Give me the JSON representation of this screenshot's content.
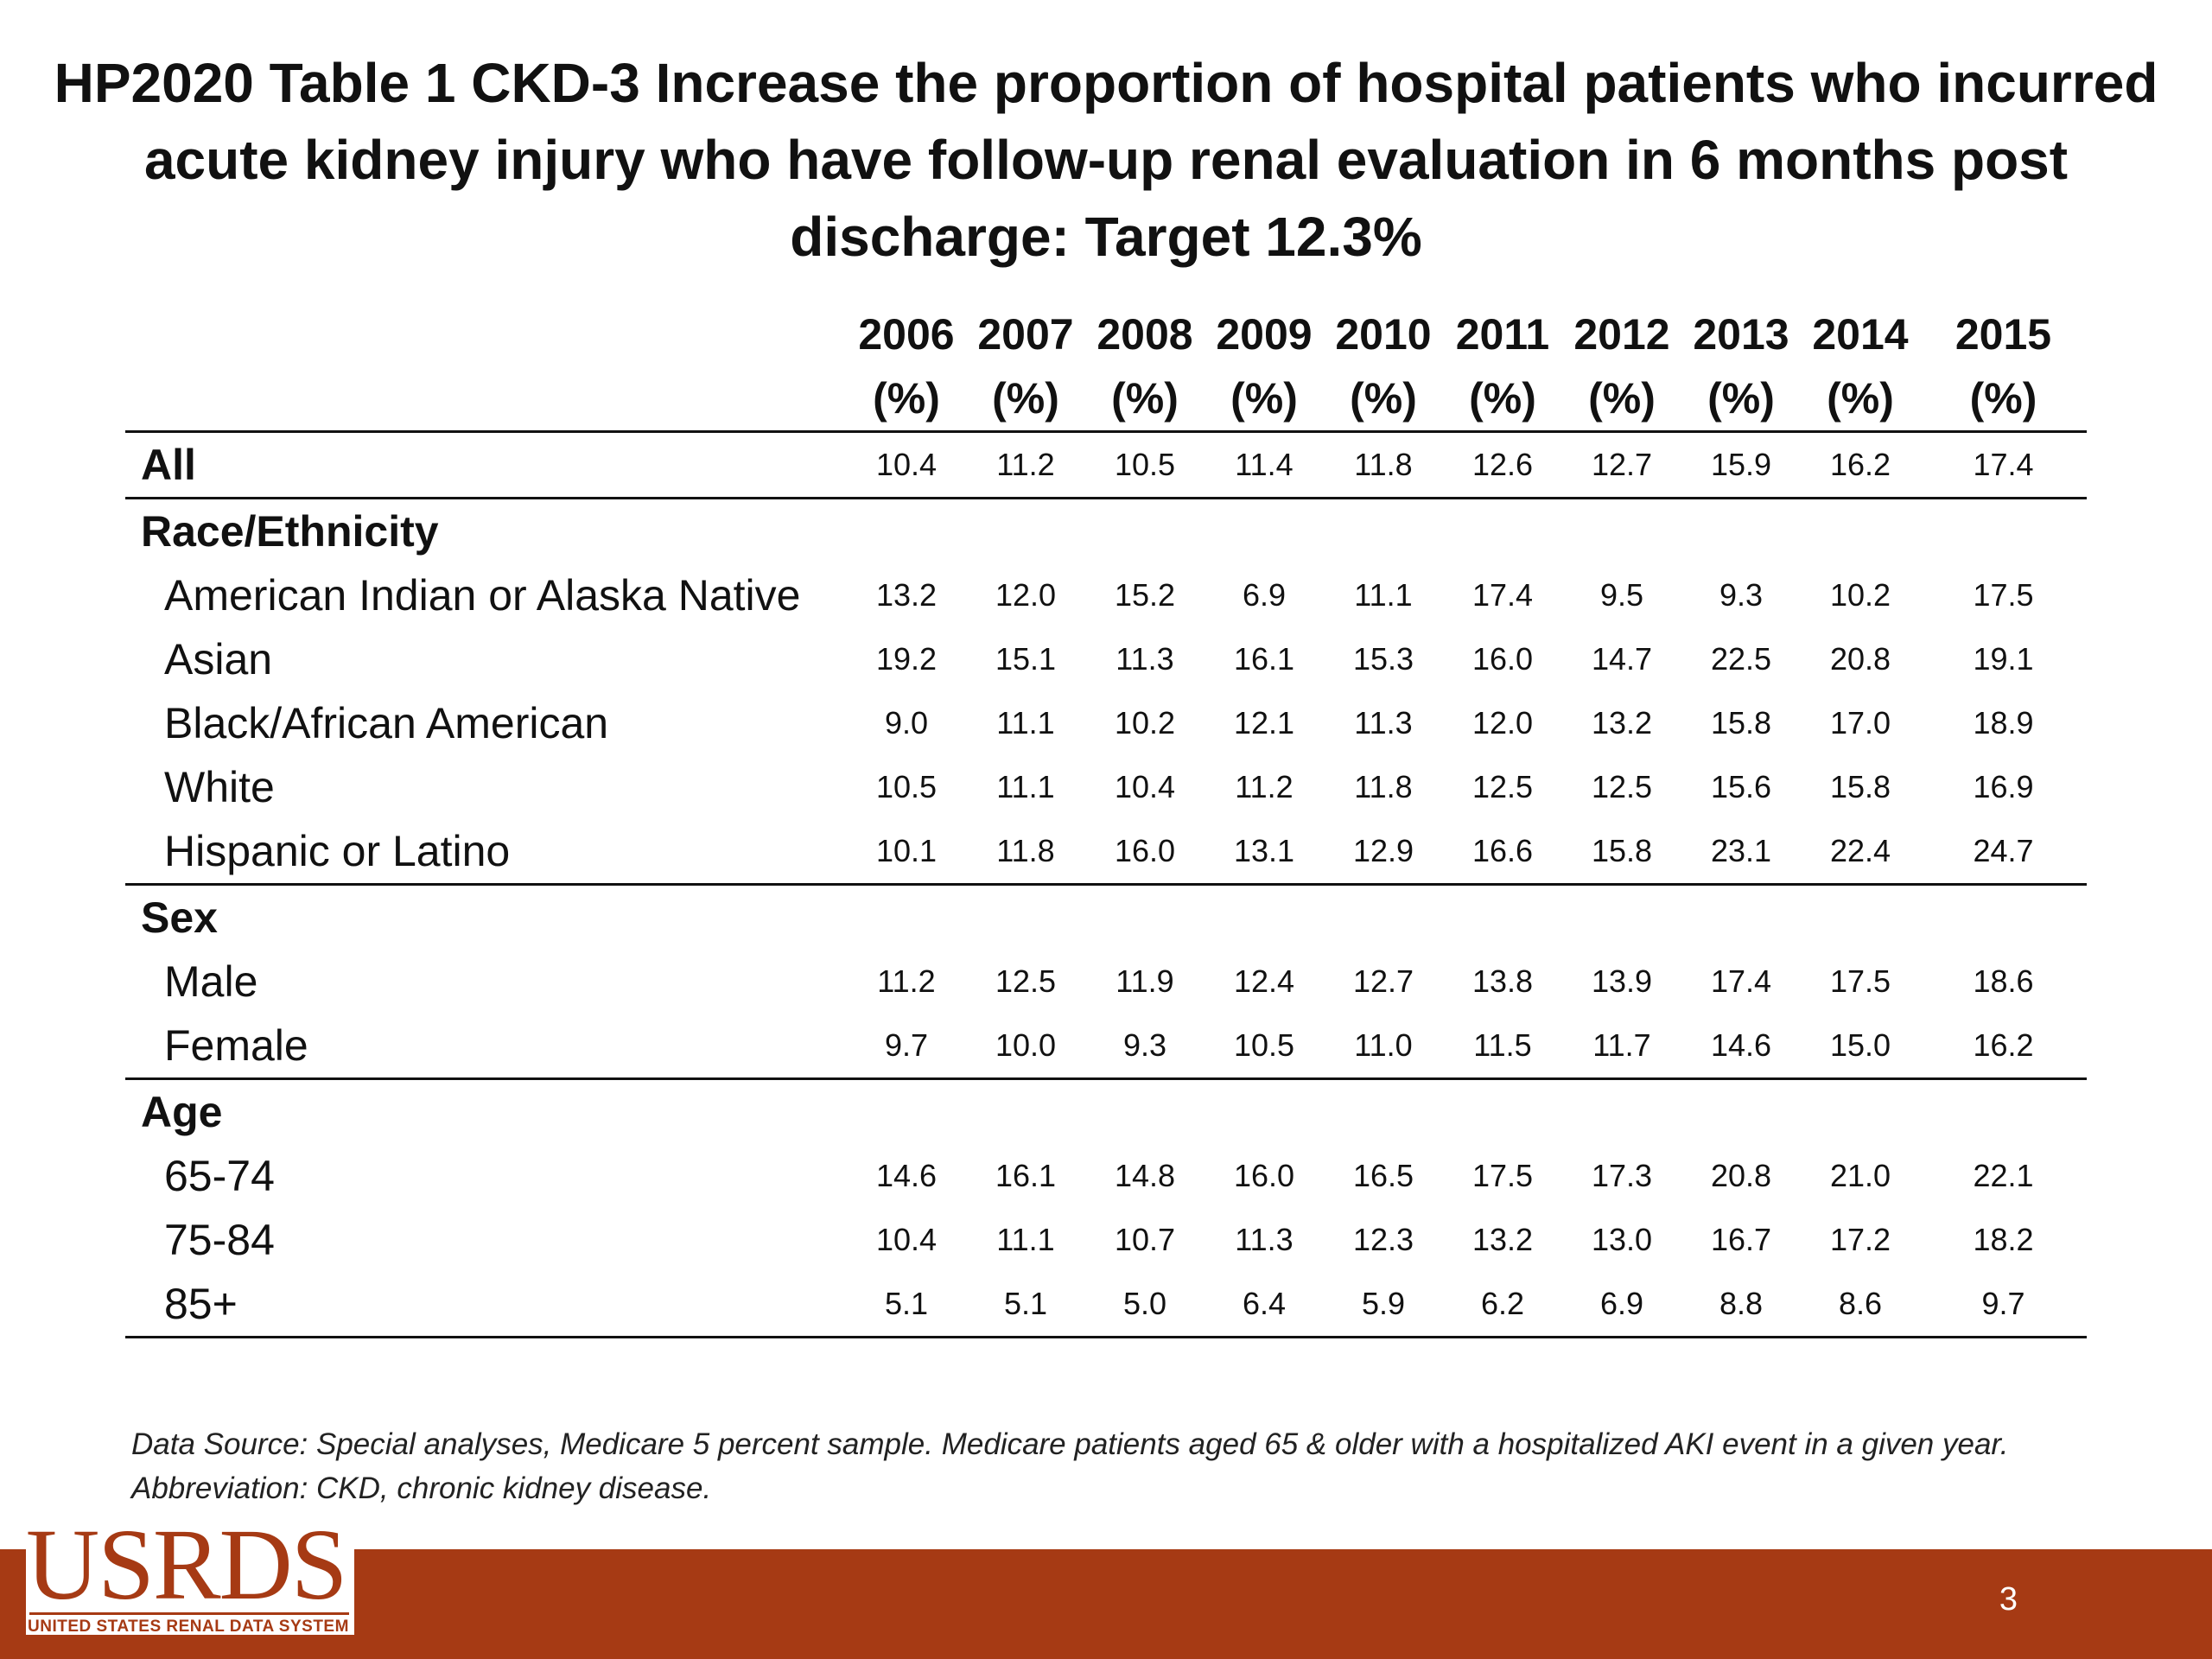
{
  "title": "HP2020 Table 1 CKD-3 Increase the proportion of hospital patients who incurred acute kidney injury who have follow-up renal evaluation in 6 months post discharge: Target 12.3%",
  "table": {
    "years": [
      "2006",
      "2007",
      "2008",
      "2009",
      "2010",
      "2011",
      "2012",
      "2013",
      "2014",
      "2015"
    ],
    "unit": "(%)",
    "all": {
      "label": "All",
      "values": [
        "10.4",
        "11.2",
        "10.5",
        "11.4",
        "11.8",
        "12.6",
        "12.7",
        "15.9",
        "16.2",
        "17.4"
      ]
    },
    "race": {
      "heading": "Race/Ethnicity",
      "rows": [
        {
          "label": "American Indian or Alaska Native",
          "values": [
            "13.2",
            "12.0",
            "15.2",
            "6.9",
            "11.1",
            "17.4",
            "9.5",
            "9.3",
            "10.2",
            "17.5"
          ]
        },
        {
          "label": "Asian",
          "values": [
            "19.2",
            "15.1",
            "11.3",
            "16.1",
            "15.3",
            "16.0",
            "14.7",
            "22.5",
            "20.8",
            "19.1"
          ]
        },
        {
          "label": "Black/African American",
          "values": [
            "9.0",
            "11.1",
            "10.2",
            "12.1",
            "11.3",
            "12.0",
            "13.2",
            "15.8",
            "17.0",
            "18.9"
          ]
        },
        {
          "label": "White",
          "values": [
            "10.5",
            "11.1",
            "10.4",
            "11.2",
            "11.8",
            "12.5",
            "12.5",
            "15.6",
            "15.8",
            "16.9"
          ]
        },
        {
          "label": "Hispanic or Latino",
          "values": [
            "10.1",
            "11.8",
            "16.0",
            "13.1",
            "12.9",
            "16.6",
            "15.8",
            "23.1",
            "22.4",
            "24.7"
          ]
        }
      ]
    },
    "sex": {
      "heading": "Sex",
      "rows": [
        {
          "label": "Male",
          "values": [
            "11.2",
            "12.5",
            "11.9",
            "12.4",
            "12.7",
            "13.8",
            "13.9",
            "17.4",
            "17.5",
            "18.6"
          ]
        },
        {
          "label": "Female",
          "values": [
            "9.7",
            "10.0",
            "9.3",
            "10.5",
            "11.0",
            "11.5",
            "11.7",
            "14.6",
            "15.0",
            "16.2"
          ]
        }
      ]
    },
    "age": {
      "heading": "Age",
      "rows": [
        {
          "label": "65-74",
          "values": [
            "14.6",
            "16.1",
            "14.8",
            "16.0",
            "16.5",
            "17.5",
            "17.3",
            "20.8",
            "21.0",
            "22.1"
          ]
        },
        {
          "label": "75-84",
          "values": [
            "10.4",
            "11.1",
            "10.7",
            "11.3",
            "12.3",
            "13.2",
            "13.0",
            "16.7",
            "17.2",
            "18.2"
          ]
        },
        {
          "label": "85+",
          "values": [
            "5.1",
            "5.1",
            "5.0",
            "6.4",
            "5.9",
            "6.2",
            "6.9",
            "8.8",
            "8.6",
            "9.7"
          ]
        }
      ]
    }
  },
  "source_note": "Data Source: Special analyses, Medicare 5 percent sample. Medicare patients aged 65 & older with a hospitalized AKI event in a given year. Abbreviation: CKD, chronic kidney disease.",
  "logo": {
    "main": "USRDS",
    "sub": "UNITED STATES RENAL DATA SYSTEM"
  },
  "page_number": "3",
  "colors": {
    "footer_bar": "#a63a14",
    "logo": "#a63a14",
    "text": "#111111"
  }
}
